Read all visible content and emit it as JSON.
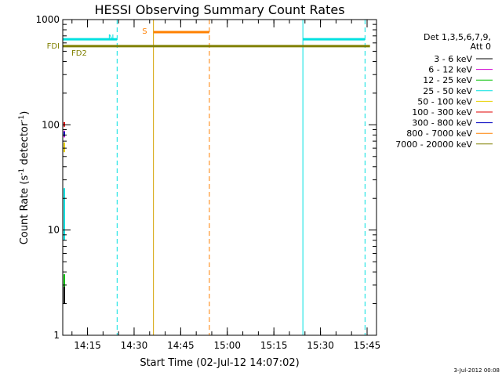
{
  "chart_data": {
    "type": "line",
    "title": "HESSI Observing Summary Count Rates",
    "xlabel": "Start Time (02-Jul-12 14:07:02)",
    "ylabel_main": "Count Rate (s",
    "ylabel_sup1": "-1",
    "ylabel_mid": " detector",
    "ylabel_sup2": "-1",
    "ylabel_end": ")",
    "y_scale": "log",
    "ylim": [
      1,
      1000
    ],
    "xlim_minutes": [
      0,
      101
    ],
    "y_ticks": [
      {
        "value": 1,
        "label": "1"
      },
      {
        "value": 10,
        "label": "10"
      },
      {
        "value": 100,
        "label": "100"
      },
      {
        "value": 1000,
        "label": "1000"
      }
    ],
    "x_ticks": [
      {
        "minute": 7.97,
        "label": "14:15"
      },
      {
        "minute": 22.97,
        "label": "14:30"
      },
      {
        "minute": 37.97,
        "label": "14:45"
      },
      {
        "minute": 52.97,
        "label": "15:00"
      },
      {
        "minute": 67.97,
        "label": "15:15"
      },
      {
        "minute": 82.97,
        "label": "15:30"
      },
      {
        "minute": 97.97,
        "label": "15:45"
      }
    ],
    "legend_header": [
      "Det 1,3,5,6,7,9,",
      "Att 0"
    ],
    "legend_position": "right",
    "series": [
      {
        "name": "3 - 6 keV",
        "color": "#000000",
        "x": [
          0.5,
          0.5
        ],
        "y": [
          2,
          3.3
        ]
      },
      {
        "name": "6 - 12 keV",
        "color": "#d000d0",
        "x": [
          0.5,
          0.5
        ],
        "y": [
          76,
          88
        ]
      },
      {
        "name": "12 - 25 keV",
        "color": "#00c000",
        "x": [
          0.5,
          0.5
        ],
        "y": [
          2.9,
          3.8
        ]
      },
      {
        "name": "25 - 50 keV",
        "color": "#00e0e0",
        "x": [
          0.5,
          0.5
        ],
        "y": [
          8,
          25
        ]
      },
      {
        "name": "50 - 100 keV",
        "color": "#e8d000",
        "x": [
          0.5,
          0.5
        ],
        "y": [
          55,
          68
        ]
      },
      {
        "name": "100 - 300 keV",
        "color": "#e00000",
        "x": [
          0.5,
          0.5
        ],
        "y": [
          96,
          106
        ]
      },
      {
        "name": "300 - 800 keV",
        "color": "#0000c0",
        "x": [
          0.5,
          0.5
        ],
        "y": [
          78,
          86
        ]
      },
      {
        "name": "800 - 7000 keV",
        "color": "#ff8000",
        "x": [],
        "y": []
      },
      {
        "name": "7000 - 20000 keV",
        "color": "#808000",
        "x": [],
        "y": []
      }
    ],
    "segments": [
      {
        "label": "N",
        "color": "#00e0e0",
        "x0": 0,
        "x1": 17.5,
        "y": 650
      },
      {
        "label": "",
        "color": "#00e0e0",
        "x0": 77.3,
        "x1": 97.3,
        "y": 650
      },
      {
        "label": "S",
        "color": "#ff8000",
        "x0": 29.2,
        "x1": 47.2,
        "y": 760
      },
      {
        "label": "FD2",
        "color": "#808000",
        "x0": 0,
        "x1": 98.9,
        "y": 560
      }
    ],
    "side_label": {
      "text": "FDI",
      "color": "#808000",
      "y": 560
    },
    "vlines": [
      {
        "x": 0,
        "color": "#00e0e0",
        "style": "solid"
      },
      {
        "x": 17.5,
        "color": "#00e0e0",
        "style": "dashed"
      },
      {
        "x": 29.2,
        "color": "#d4a000",
        "style": "solid"
      },
      {
        "x": 47.2,
        "color": "#ff8000",
        "style": "dashed"
      },
      {
        "x": 77.3,
        "color": "#00e0e0",
        "style": "solid"
      },
      {
        "x": 97.3,
        "color": "#00e0e0",
        "style": "dashed"
      }
    ]
  },
  "timestamp": "3-Jul-2012 00:08"
}
